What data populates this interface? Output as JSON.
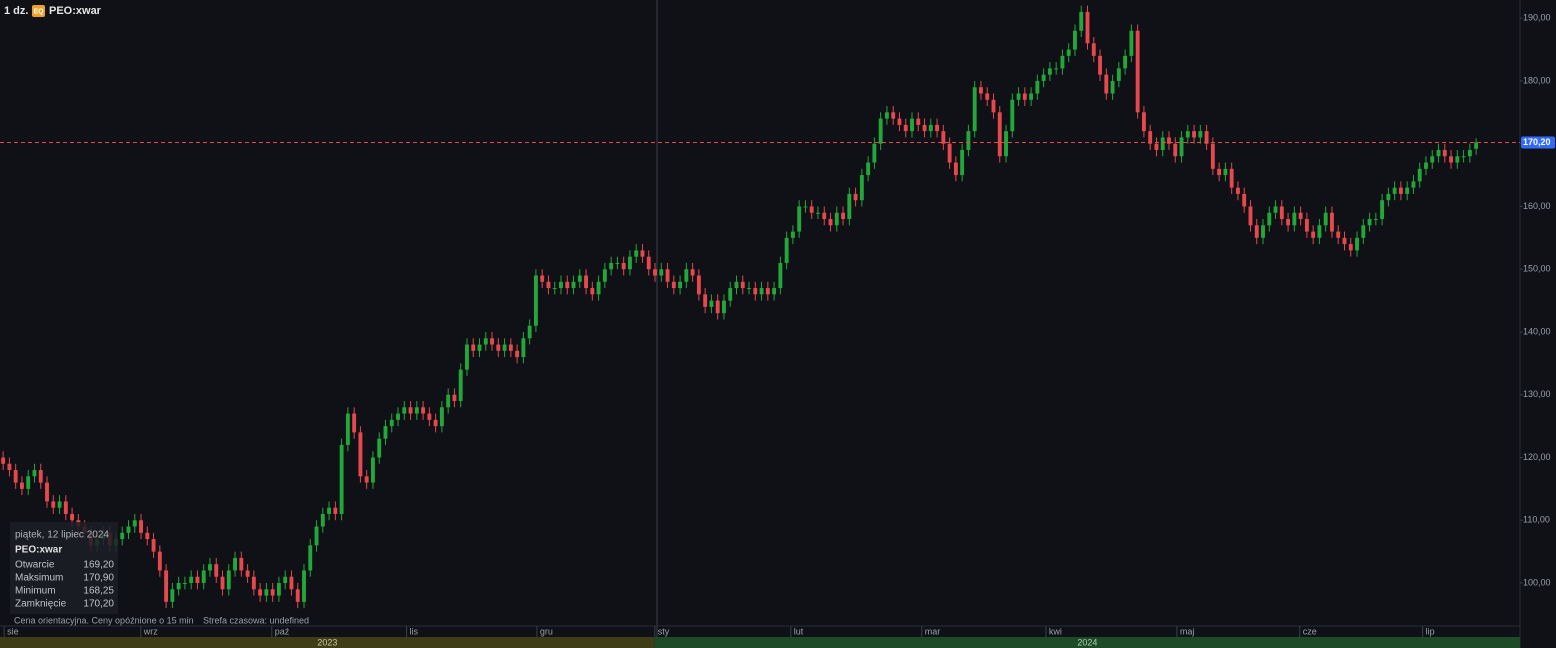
{
  "chart_data": {
    "type": "candlestick",
    "interval": "1 dz.",
    "badge": "EQ",
    "symbol": "PEO:xwar",
    "up_color": "#22a83a",
    "down_color": "#e5484d",
    "open": [
      120,
      119,
      118,
      116,
      115,
      117,
      118,
      116,
      113,
      112,
      113,
      111,
      110,
      109,
      108,
      106,
      107,
      108,
      106,
      107,
      108,
      109,
      110,
      108,
      107,
      105,
      102,
      97,
      99,
      100,
      100,
      101,
      100,
      102,
      103,
      101,
      99,
      102,
      104,
      102,
      101,
      99,
      98,
      99,
      98,
      100,
      101,
      99,
      97,
      102,
      106,
      109,
      111,
      112,
      111,
      122,
      127,
      124,
      117,
      116,
      120,
      123,
      125,
      126,
      127,
      128,
      127,
      128,
      127,
      126,
      125,
      128,
      130,
      129,
      134,
      138,
      137,
      138,
      139,
      138,
      137,
      138,
      137,
      136,
      139,
      141,
      149,
      148,
      147,
      147,
      148,
      147,
      148,
      149,
      147,
      146,
      148,
      150,
      151,
      151,
      150,
      152,
      153,
      152,
      150,
      149,
      150,
      148,
      147,
      148,
      150,
      149,
      146,
      144,
      145,
      143,
      145,
      147,
      148,
      147,
      147,
      146,
      147,
      146,
      147,
      151,
      155,
      156,
      160,
      160,
      159,
      159,
      158,
      157,
      159,
      158,
      162,
      161,
      165,
      167,
      170,
      174,
      175,
      174,
      173,
      172,
      174,
      173,
      172,
      173,
      172,
      170,
      167,
      165,
      169,
      172,
      179,
      178,
      177,
      175,
      168,
      172,
      177,
      178,
      177,
      178,
      180,
      181,
      182,
      182,
      184,
      185,
      188,
      191,
      186,
      184,
      181,
      178,
      180,
      182,
      184,
      188,
      175,
      172,
      170,
      169,
      171,
      170,
      168,
      171,
      172,
      171,
      172,
      170,
      166,
      165,
      166,
      163,
      162,
      160,
      157,
      155,
      157,
      159,
      160,
      158,
      157,
      159,
      158,
      156,
      155,
      157,
      159,
      156,
      155,
      154,
      153,
      155,
      157,
      158,
      158,
      161,
      162,
      163,
      162,
      163,
      164,
      166,
      167,
      168,
      169,
      168,
      167,
      168,
      168,
      169.2
    ],
    "high": [
      121,
      120,
      119,
      117,
      118,
      119,
      119,
      117,
      114,
      114,
      114,
      112,
      111,
      110,
      109,
      108,
      109,
      109,
      108,
      109,
      110,
      111,
      111,
      109,
      108,
      106,
      103,
      100,
      101,
      101,
      102,
      102,
      103,
      104,
      104,
      102,
      103,
      105,
      105,
      103,
      102,
      100,
      100,
      100,
      101,
      102,
      102,
      100,
      103,
      107,
      110,
      112,
      113,
      113,
      123,
      128,
      128,
      125,
      118,
      121,
      124,
      126,
      127,
      128,
      129,
      129,
      129,
      129,
      128,
      127,
      129,
      131,
      131,
      135,
      139,
      139,
      139,
      140,
      140,
      139,
      139,
      139,
      138,
      140,
      142,
      150,
      150,
      149,
      148,
      149,
      149,
      149,
      150,
      150,
      148,
      149,
      151,
      152,
      152,
      152,
      153,
      154,
      154,
      153,
      151,
      151,
      151,
      149,
      149,
      151,
      151,
      150,
      147,
      146,
      146,
      146,
      148,
      149,
      149,
      148,
      148,
      148,
      148,
      148,
      152,
      156,
      157,
      161,
      161,
      161,
      160,
      160,
      159,
      160,
      160,
      163,
      163,
      166,
      168,
      171,
      175,
      176,
      176,
      175,
      174,
      175,
      175,
      174,
      174,
      174,
      173,
      171,
      168,
      170,
      173,
      180,
      180,
      179,
      178,
      176,
      173,
      178,
      179,
      179,
      179,
      181,
      182,
      183,
      183,
      185,
      186,
      189,
      192,
      192,
      187,
      185,
      182,
      181,
      183,
      185,
      189,
      189,
      176,
      173,
      171,
      172,
      172,
      171,
      172,
      173,
      173,
      173,
      173,
      171,
      167,
      167,
      167,
      164,
      163,
      161,
      158,
      158,
      160,
      161,
      161,
      159,
      160,
      160,
      159,
      157,
      158,
      160,
      160,
      157,
      156,
      155,
      156,
      158,
      159,
      159,
      162,
      163,
      164,
      164,
      164,
      165,
      167,
      168,
      169,
      170,
      170,
      169,
      169,
      169,
      170,
      170.9
    ],
    "low": [
      118,
      117,
      115,
      114,
      114,
      116,
      115,
      112,
      111,
      111,
      110,
      109,
      108,
      107,
      105,
      105,
      106,
      105,
      105,
      106,
      107,
      108,
      107,
      106,
      104,
      101,
      96,
      96,
      98,
      99,
      99,
      99,
      99,
      101,
      100,
      98,
      98,
      101,
      101,
      100,
      98,
      97,
      97,
      97,
      97,
      99,
      98,
      96,
      96,
      101,
      105,
      108,
      110,
      110,
      110,
      121,
      123,
      116,
      115,
      115,
      119,
      122,
      124,
      125,
      126,
      126,
      126,
      126,
      125,
      124,
      124,
      127,
      128,
      128,
      133,
      136,
      136,
      137,
      137,
      136,
      136,
      136,
      135,
      135,
      138,
      140,
      147,
      146,
      146,
      146,
      146,
      146,
      147,
      146,
      145,
      145,
      147,
      149,
      150,
      149,
      149,
      151,
      151,
      149,
      148,
      148,
      147,
      146,
      146,
      147,
      148,
      145,
      143,
      143,
      142,
      142,
      144,
      146,
      146,
      146,
      145,
      145,
      145,
      145,
      146,
      150,
      154,
      155,
      159,
      158,
      158,
      157,
      156,
      156,
      157,
      157,
      160,
      160,
      164,
      166,
      169,
      173,
      173,
      172,
      171,
      171,
      172,
      171,
      171,
      171,
      169,
      166,
      164,
      164,
      168,
      171,
      177,
      176,
      174,
      167,
      167,
      171,
      176,
      176,
      176,
      177,
      179,
      180,
      181,
      181,
      183,
      184,
      187,
      185,
      183,
      180,
      177,
      177,
      179,
      181,
      183,
      174,
      171,
      169,
      168,
      168,
      169,
      167,
      167,
      170,
      170,
      170,
      169,
      165,
      164,
      164,
      162,
      161,
      159,
      156,
      154,
      154,
      156,
      158,
      157,
      156,
      156,
      157,
      155,
      154,
      154,
      156,
      155,
      154,
      153,
      152,
      152,
      154,
      156,
      157,
      157,
      160,
      161,
      161,
      161,
      162,
      163,
      165,
      166,
      167,
      167,
      166,
      166,
      167,
      167,
      168.25
    ],
    "close": [
      119,
      118,
      116,
      115,
      117,
      118,
      116,
      113,
      112,
      113,
      111,
      110,
      109,
      108,
      106,
      107,
      108,
      106,
      107,
      108,
      109,
      110,
      108,
      107,
      105,
      102,
      97,
      99,
      100,
      100,
      101,
      100,
      102,
      103,
      101,
      99,
      102,
      104,
      102,
      101,
      99,
      98,
      99,
      98,
      100,
      101,
      99,
      97,
      102,
      106,
      109,
      111,
      112,
      111,
      122,
      127,
      124,
      117,
      116,
      120,
      123,
      125,
      126,
      127,
      128,
      127,
      128,
      127,
      126,
      125,
      128,
      130,
      129,
      134,
      138,
      137,
      138,
      139,
      138,
      137,
      138,
      137,
      136,
      139,
      141,
      149,
      148,
      147,
      147,
      148,
      147,
      148,
      149,
      147,
      146,
      148,
      150,
      151,
      151,
      150,
      152,
      153,
      152,
      150,
      149,
      150,
      148,
      147,
      148,
      150,
      149,
      146,
      144,
      145,
      143,
      145,
      147,
      148,
      147,
      147,
      146,
      147,
      146,
      147,
      151,
      155,
      156,
      160,
      160,
      159,
      159,
      158,
      157,
      159,
      158,
      162,
      161,
      165,
      167,
      170,
      174,
      175,
      174,
      173,
      172,
      174,
      173,
      172,
      173,
      172,
      170,
      167,
      165,
      169,
      172,
      179,
      178,
      177,
      175,
      168,
      172,
      177,
      178,
      177,
      178,
      180,
      181,
      182,
      182,
      184,
      185,
      188,
      191,
      186,
      184,
      181,
      178,
      180,
      182,
      184,
      188,
      175,
      172,
      170,
      169,
      171,
      170,
      168,
      171,
      172,
      171,
      172,
      170,
      166,
      165,
      166,
      163,
      162,
      160,
      157,
      155,
      157,
      159,
      160,
      158,
      157,
      159,
      158,
      156,
      155,
      157,
      159,
      156,
      155,
      154,
      153,
      155,
      157,
      158,
      158,
      161,
      162,
      163,
      162,
      163,
      164,
      166,
      167,
      168,
      169,
      168,
      167,
      168,
      168,
      169,
      170.2
    ],
    "xlim": [
      -0.5,
      242
    ],
    "xticks": [
      {
        "value": 0.8,
        "label": "sie"
      },
      {
        "value": 22.6,
        "label": "wrz"
      },
      {
        "value": 43.5,
        "label": "paź"
      },
      {
        "value": 65,
        "label": "lis"
      },
      {
        "value": 85.8,
        "label": "gru"
      },
      {
        "value": 104.6,
        "label": "sty"
      },
      {
        "value": 126.3,
        "label": "lut"
      },
      {
        "value": 147.2,
        "label": "mar"
      },
      {
        "value": 167,
        "label": "kwi"
      },
      {
        "value": 187.9,
        "label": "maj"
      },
      {
        "value": 207.5,
        "label": "cze"
      },
      {
        "value": 227.1,
        "label": "lip"
      }
    ],
    "years": [
      "2023",
      "2024"
    ],
    "ylim": [
      93.15,
      192.9
    ],
    "yticks": [
      {
        "value": 100,
        "label": "100,00"
      },
      {
        "value": 110,
        "label": "110,00"
      },
      {
        "value": 120,
        "label": "120,00"
      },
      {
        "value": 130,
        "label": "130,00"
      },
      {
        "value": 140,
        "label": "140,00"
      },
      {
        "value": 150,
        "label": "150,00"
      },
      {
        "value": 160,
        "label": "160,00"
      },
      {
        "value": 170,
        "label": "170,00"
      },
      {
        "value": 180,
        "label": "180,00"
      },
      {
        "value": 190,
        "label": "190,00"
      }
    ],
    "last_price": {
      "value": 170.2,
      "label": "170,20"
    },
    "grid": false
  },
  "tooltip": {
    "date": "piątek, 12 lipiec 2024",
    "symbol": "PEO:xwar",
    "rows": [
      [
        "Otwarcie",
        "169,20"
      ],
      [
        "Maksimum",
        "170,90"
      ],
      [
        "Minimum",
        "168,25"
      ],
      [
        "Zamknięcie",
        "170,20"
      ]
    ]
  },
  "footer": [
    "Cena orientacyjna. Ceny opóźnione o 15 min",
    "Strefa czasowa: undefined"
  ]
}
